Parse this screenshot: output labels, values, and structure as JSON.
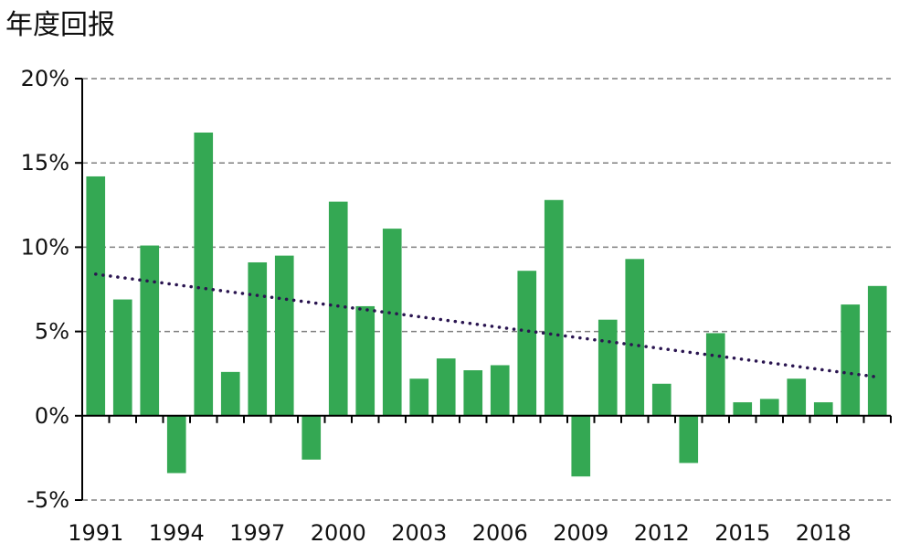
{
  "chart_data": {
    "type": "bar",
    "title": "年度回报",
    "xlabel": "",
    "ylabel": "",
    "ylim": [
      -5,
      20
    ],
    "yticks": [
      -5,
      0,
      5,
      10,
      15,
      20
    ],
    "ytick_labels": [
      "-5%",
      "0%",
      "5%",
      "10%",
      "15%",
      "20%"
    ],
    "categories": [
      "1991",
      "1992",
      "1993",
      "1994",
      "1995",
      "1996",
      "1997",
      "1998",
      "1999",
      "2000",
      "2001",
      "2002",
      "2003",
      "2004",
      "2005",
      "2006",
      "2007",
      "2008",
      "2009",
      "2010",
      "2011",
      "2012",
      "2013",
      "2014",
      "2015",
      "2016",
      "2017",
      "2018",
      "2019",
      "2020"
    ],
    "xtick_labels": [
      "1991",
      "1994",
      "1997",
      "2000",
      "2003",
      "2006",
      "2009",
      "2012",
      "2015",
      "2018"
    ],
    "values": [
      14.2,
      6.9,
      10.1,
      -3.4,
      16.8,
      2.6,
      9.1,
      9.5,
      -2.6,
      12.7,
      6.5,
      11.1,
      2.2,
      3.4,
      2.7,
      3.0,
      8.6,
      12.8,
      -3.6,
      5.7,
      9.3,
      1.9,
      -2.8,
      4.9,
      0.8,
      1.0,
      2.2,
      0.8,
      6.6,
      7.7
    ],
    "trendline": {
      "style": "dotted",
      "start": 8.4,
      "end": 2.3
    },
    "grid": true,
    "colors": {
      "bar": "#34a853",
      "trend": "#2a1550",
      "grid": "#7f7f7f",
      "axis": "#000000"
    }
  }
}
